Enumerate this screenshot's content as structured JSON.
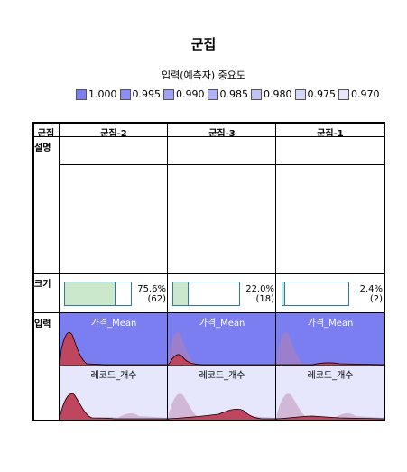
{
  "header": {
    "title": "군집",
    "subtitle": "입력(예측자) 중요도"
  },
  "legend": {
    "items": [
      {
        "label": "1.000",
        "color": "#7b7ef0"
      },
      {
        "label": "0.995",
        "color": "#8c8ff2"
      },
      {
        "label": "0.990",
        "color": "#9ea1f4"
      },
      {
        "label": "0.985",
        "color": "#b0b2f6"
      },
      {
        "label": "0.980",
        "color": "#c2c4f8"
      },
      {
        "label": "0.975",
        "color": "#d4d6fa"
      },
      {
        "label": "0.970",
        "color": "#e6e7fc"
      }
    ]
  },
  "table": {
    "corner_label": "군집",
    "row_labels": {
      "description": "설명",
      "size": "크기",
      "inputs": "입력"
    },
    "clusters": [
      {
        "name": "군집-2",
        "percent_label": "75.6%",
        "count_label": "(62)",
        "size_fraction": 0.756
      },
      {
        "name": "군집-3",
        "percent_label": "22.0%",
        "count_label": "(18)",
        "size_fraction": 0.22
      },
      {
        "name": "군집-1",
        "percent_label": "2.4%",
        "count_label": "(2)",
        "size_fraction": 0.024
      }
    ],
    "inputs": [
      {
        "label": "가격_Mean",
        "bg_color": "#7b7ef0",
        "label_color": "#ffffff"
      },
      {
        "label": "레코드_개수",
        "bg_color": "#e6e7fc",
        "label_color": "#000000"
      }
    ]
  }
}
